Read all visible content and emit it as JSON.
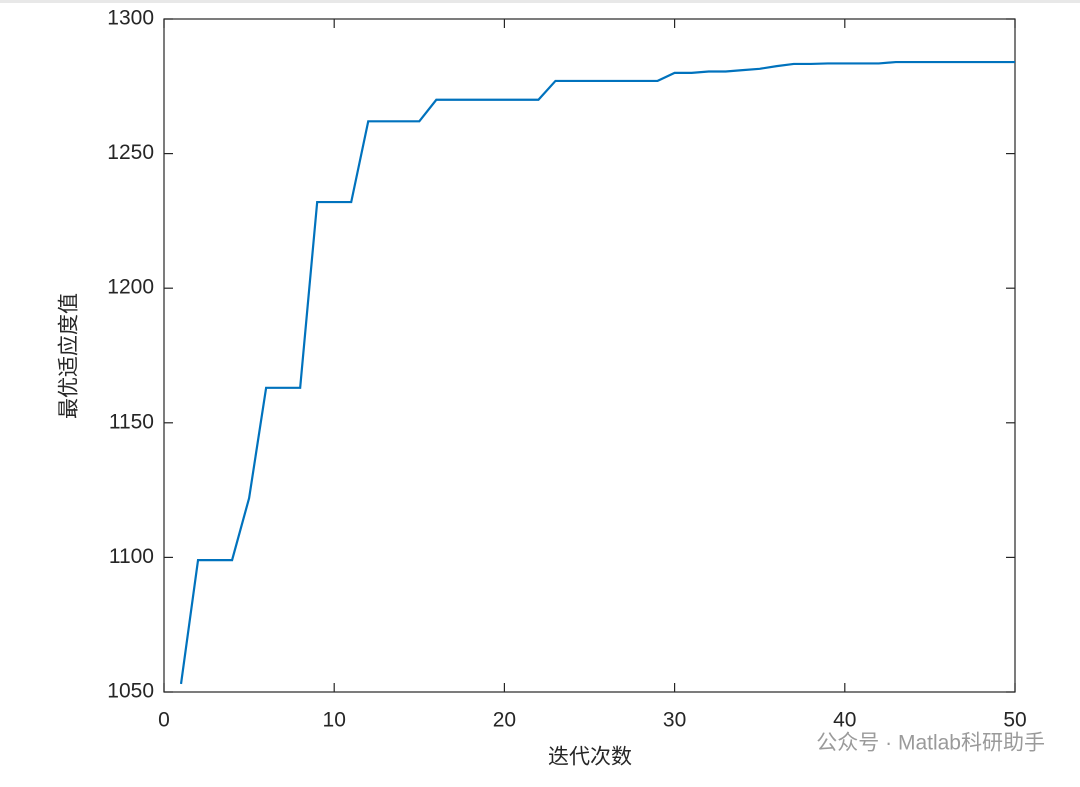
{
  "chart_data": {
    "type": "line",
    "x_label": "迭代次数",
    "y_label": "最优适应度值",
    "watermark": "公众号 · Matlab科研助手",
    "x": [
      1,
      2,
      3,
      4,
      5,
      6,
      7,
      8,
      9,
      10,
      11,
      12,
      13,
      14,
      15,
      16,
      17,
      18,
      19,
      20,
      21,
      22,
      23,
      24,
      25,
      26,
      27,
      28,
      29,
      30,
      31,
      32,
      33,
      34,
      35,
      36,
      37,
      38,
      39,
      40,
      41,
      42,
      43,
      44,
      45,
      46,
      47,
      48,
      49,
      50
    ],
    "series": [
      {
        "color": "#0072BD",
        "values": [
          1053,
          1099,
          1099,
          1099,
          1122,
          1163,
          1163,
          1163,
          1232,
          1232,
          1232,
          1262,
          1262,
          1262,
          1262,
          1270,
          1270,
          1270,
          1270,
          1270,
          1270,
          1270,
          1277,
          1277,
          1277,
          1277,
          1277,
          1277,
          1277,
          1280,
          1280,
          1280.5,
          1280.5,
          1281,
          1281.5,
          1282.5,
          1283.3,
          1283.3,
          1283.5,
          1283.5,
          1283.5,
          1283.5,
          1284,
          1284,
          1284,
          1284,
          1284,
          1284,
          1284,
          1284
        ]
      }
    ],
    "xlim": [
      0,
      50
    ],
    "xticks": [
      0,
      10,
      20,
      30,
      40,
      50
    ],
    "ylim": [
      1050,
      1300
    ],
    "yticks": [
      1050,
      1100,
      1150,
      1200,
      1250,
      1300
    ]
  }
}
